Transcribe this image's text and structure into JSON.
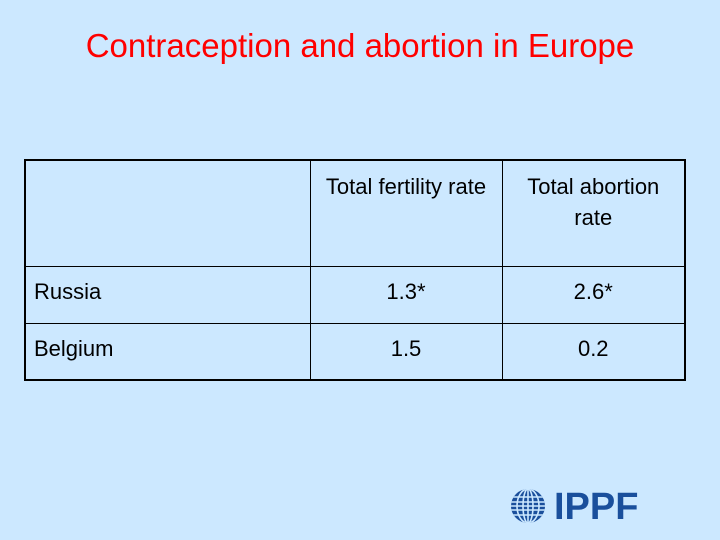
{
  "slide": {
    "title": "Contraception and abortion in Europe"
  },
  "table": {
    "headers": [
      "",
      "Total fertility rate",
      "Total abortion rate"
    ],
    "rows": [
      {
        "country": "Russia",
        "fertility": "1.3*",
        "abortion": "2.6*"
      },
      {
        "country": "Belgium",
        "fertility": "1.5",
        "abortion": "0.2"
      }
    ]
  },
  "logo": {
    "text": "IPPF",
    "icon": "globe-icon",
    "color": "#1a4f9c"
  },
  "colors": {
    "background": "#cce8ff",
    "title": "#ff0000"
  }
}
